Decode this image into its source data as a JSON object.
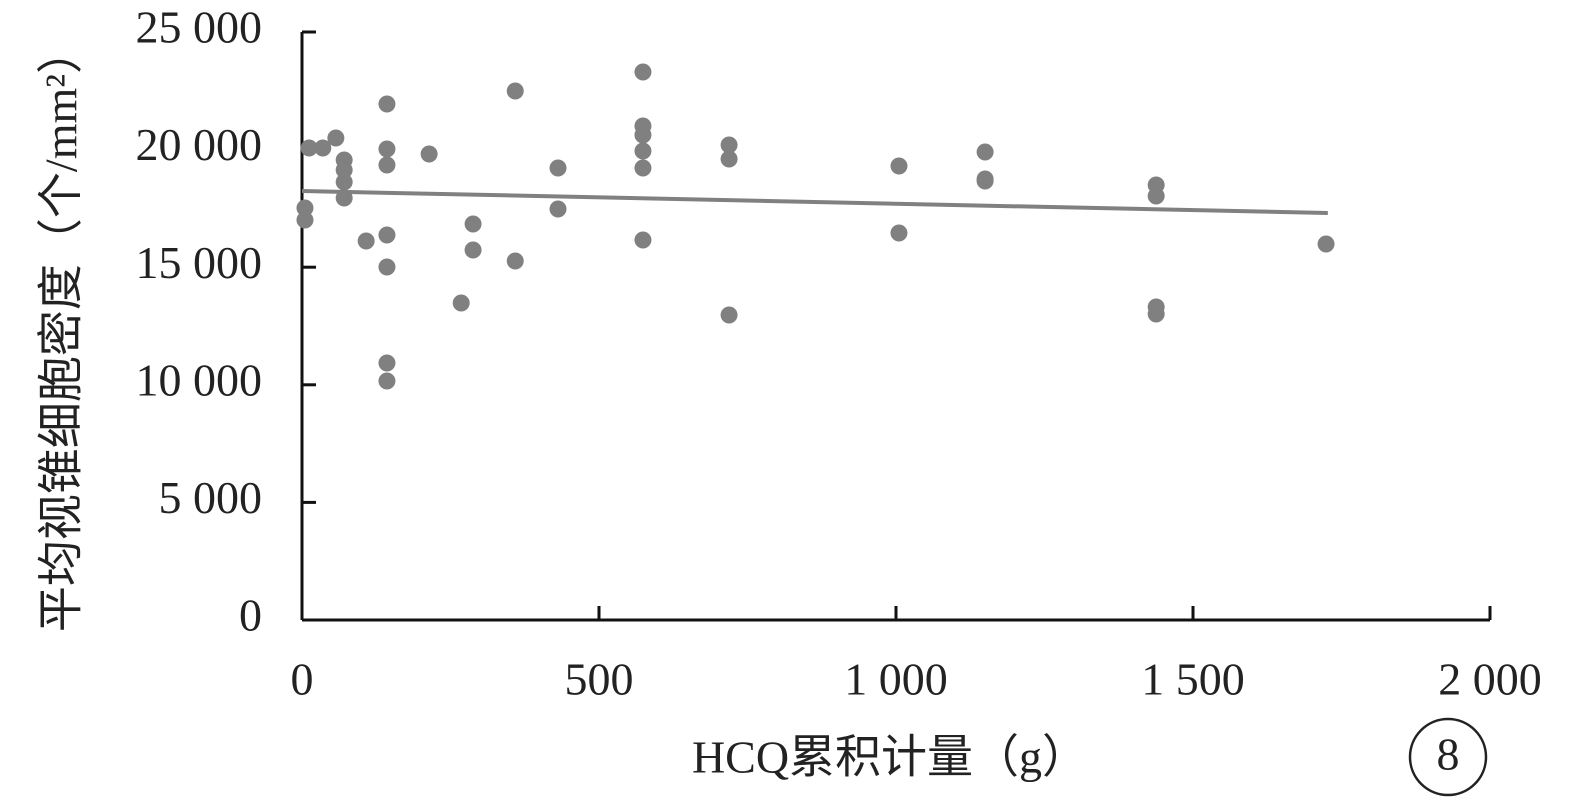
{
  "chart_data": {
    "type": "scatter",
    "x_label": "HCQ累积计量（g）",
    "y_label": "平均视锥细胞密度（个/mm²）",
    "panel_label": "8",
    "color": "#808080",
    "x": [
      5,
      5,
      12,
      35,
      57,
      71,
      71,
      71,
      71,
      108,
      143,
      143,
      143,
      143,
      143,
      143,
      143,
      214,
      268,
      288,
      288,
      359,
      359,
      431,
      431,
      574,
      574,
      574,
      574,
      574,
      574,
      719,
      719,
      719,
      1005,
      1005,
      1150,
      1150,
      1150,
      1438,
      1438,
      1438,
      1438,
      1724
    ],
    "values": [
      17517,
      17007,
      20068,
      20068,
      20493,
      19558,
      19133,
      18622,
      17942,
      16114,
      21939,
      20025,
      19345,
      16369,
      15009,
      10927,
      10162,
      19813,
      13478,
      16837,
      15731,
      22491,
      15264,
      19218,
      17474,
      23299,
      21003,
      20621,
      19940,
      19218,
      16156,
      20196,
      19600,
      12968,
      19303,
      16454,
      19898,
      18750,
      18665,
      18495,
      18027,
      13308,
      13010,
      15986
    ],
    "trendline": {
      "x": [
        0,
        1727
      ],
      "values": [
        18240,
        17305
      ],
      "color": "#808080"
    },
    "xlim": [
      0,
      2000
    ],
    "xticks": [
      0,
      500,
      {
        "value": 1000,
        "label": "1 000"
      },
      {
        "value": 1500,
        "label": "1 500"
      },
      {
        "value": 2000,
        "label": "2 000"
      }
    ],
    "ylim": [
      0,
      25000
    ],
    "yticks": [
      0,
      {
        "value": 5000,
        "label": "5 000"
      },
      {
        "value": 10000,
        "label": "10 000"
      },
      {
        "value": 15000,
        "label": "15 000"
      },
      {
        "value": 20000,
        "label": "20 000"
      },
      {
        "value": 25000,
        "label": "25 000"
      }
    ]
  }
}
